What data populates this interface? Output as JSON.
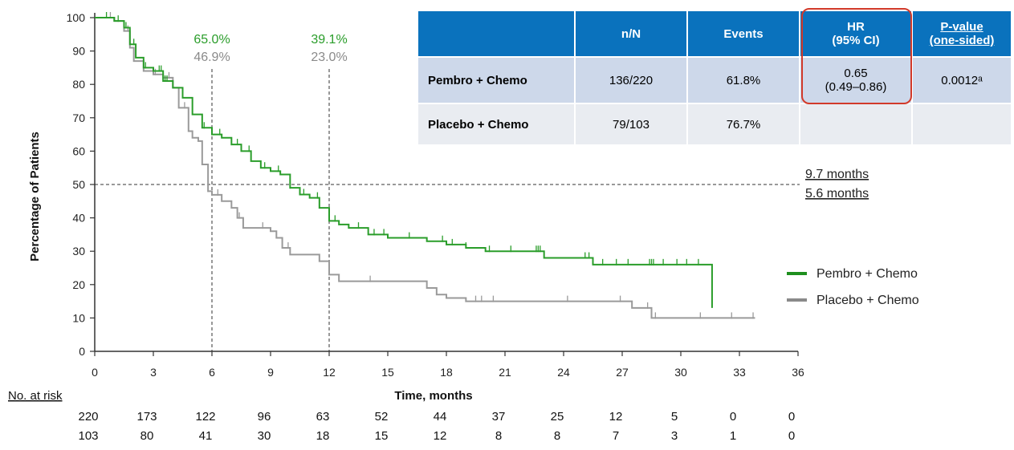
{
  "chart_data": {
    "type": "line",
    "title": "",
    "xlabel": "Time, months",
    "ylabel": "Percentage of Patients",
    "xlim": [
      0,
      36
    ],
    "ylim": [
      0,
      100
    ],
    "xticks": [
      0,
      3,
      6,
      9,
      12,
      15,
      18,
      21,
      24,
      27,
      30,
      33,
      36
    ],
    "yticks": [
      0,
      10,
      20,
      30,
      40,
      50,
      60,
      70,
      80,
      90,
      100
    ],
    "grid": false,
    "legend_position": "right",
    "series": [
      {
        "name": "Pembro + Chemo",
        "color": "#2a9d2a",
        "points": [
          [
            0,
            100
          ],
          [
            1,
            99
          ],
          [
            1.5,
            97
          ],
          [
            1.8,
            92
          ],
          [
            2.1,
            88
          ],
          [
            2.5,
            85
          ],
          [
            3,
            84
          ],
          [
            3.5,
            81
          ],
          [
            4,
            79
          ],
          [
            4.5,
            76
          ],
          [
            5,
            71
          ],
          [
            5.5,
            67
          ],
          [
            6,
            65
          ],
          [
            6.5,
            64
          ],
          [
            7,
            62
          ],
          [
            7.5,
            60
          ],
          [
            8,
            57
          ],
          [
            8.5,
            55
          ],
          [
            9,
            54
          ],
          [
            9.5,
            53
          ],
          [
            10,
            49
          ],
          [
            10.5,
            47
          ],
          [
            11,
            46
          ],
          [
            11.5,
            43
          ],
          [
            12,
            39.1
          ],
          [
            12.5,
            38
          ],
          [
            13,
            37
          ],
          [
            14,
            35
          ],
          [
            15,
            34
          ],
          [
            16,
            34
          ],
          [
            17,
            33
          ],
          [
            18,
            32
          ],
          [
            19,
            31
          ],
          [
            20,
            30
          ],
          [
            22,
            30
          ],
          [
            23,
            28
          ],
          [
            24,
            28
          ],
          [
            25,
            28
          ],
          [
            25.5,
            26
          ],
          [
            27,
            26
          ],
          [
            28,
            26
          ],
          [
            31.5,
            26
          ],
          [
            31.6,
            13
          ]
        ],
        "censor_x": [
          0.6,
          1.2,
          1.6,
          2.0,
          2.6,
          3.3,
          3.4,
          3.5,
          3.6,
          3.7,
          5.6,
          6.4,
          7.0,
          7.3,
          7.9,
          8.7,
          9.4,
          10.0,
          10.7,
          11.4,
          12.3,
          13.5,
          14.3,
          14.8,
          16.1,
          17.8,
          18.3,
          19.0,
          20.2,
          21.3,
          22.6,
          22.7,
          22.8,
          25.1,
          25.3,
          26.0,
          26.7,
          27.3,
          28.4,
          28.5,
          28.6,
          29.1,
          29.8,
          30.3,
          30.9
        ]
      },
      {
        "name": "Placebo + Chemo",
        "color": "#9a9a9a",
        "points": [
          [
            0,
            100
          ],
          [
            1,
            99
          ],
          [
            1.5,
            96
          ],
          [
            1.8,
            91
          ],
          [
            2,
            87
          ],
          [
            2.5,
            84
          ],
          [
            3,
            83
          ],
          [
            3.5,
            82
          ],
          [
            4,
            79
          ],
          [
            4.3,
            73
          ],
          [
            4.8,
            66
          ],
          [
            5,
            64
          ],
          [
            5.3,
            63
          ],
          [
            5.5,
            56
          ],
          [
            5.8,
            48
          ],
          [
            6,
            46.9
          ],
          [
            6.5,
            45
          ],
          [
            7,
            43
          ],
          [
            7.3,
            40
          ],
          [
            7.6,
            37
          ],
          [
            8,
            37
          ],
          [
            9,
            36
          ],
          [
            9.3,
            34
          ],
          [
            9.6,
            31
          ],
          [
            10,
            29
          ],
          [
            11,
            29
          ],
          [
            11.5,
            27
          ],
          [
            12,
            23.0
          ],
          [
            12.5,
            21
          ],
          [
            13,
            21
          ],
          [
            14,
            21
          ],
          [
            16,
            21
          ],
          [
            17,
            19
          ],
          [
            17.5,
            17
          ],
          [
            18,
            16
          ],
          [
            19,
            15
          ],
          [
            25,
            15
          ],
          [
            27,
            15
          ],
          [
            27.5,
            13
          ],
          [
            28.5,
            10
          ],
          [
            33.8,
            10
          ]
        ],
        "censor_x": [
          0.8,
          1.7,
          3.1,
          3.8,
          4.6,
          5.8,
          6.3,
          7.4,
          8.6,
          9.9,
          14.1,
          19.5,
          19.8,
          20.4,
          24.2,
          26.9,
          28.3,
          28.7,
          31.0,
          32.6,
          33.7
        ]
      }
    ],
    "annotations": {
      "pembro_6mo": "65.0%",
      "placebo_6mo": "46.9%",
      "pembro_12mo": "39.1%",
      "placebo_12mo": "23.0%",
      "median_pembro": "9.7 months",
      "median_placebo": "5.6 months"
    },
    "reference_lines": {
      "vertical_x": [
        6,
        12
      ],
      "horizontal_y": 50
    }
  },
  "risk_table": {
    "label": "No. at risk",
    "pembro": [
      "220",
      "173",
      "122",
      "96",
      "63",
      "52",
      "44",
      "37",
      "25",
      "12",
      "5",
      "0",
      "0"
    ],
    "placebo": [
      "103",
      "80",
      "41",
      "30",
      "18",
      "15",
      "12",
      "8",
      "8",
      "7",
      "3",
      "1",
      "0"
    ]
  },
  "legend": {
    "pembro": "Pembro + Chemo",
    "placebo": "Placebo + Chemo"
  },
  "hr_table": {
    "headers": {
      "nN": "n/N",
      "events": "Events",
      "hr_line1": "HR",
      "hr_line2": "(95% CI)",
      "p_line1": "P-value",
      "p_line2": "(one-sided)"
    },
    "rows": [
      {
        "arm": "Pembro + Chemo",
        "nN": "136/220",
        "events": "61.8%",
        "hr_line1": "0.65",
        "hr_line2": "(0.49–0.86)",
        "p": "0.0012ᵃ"
      },
      {
        "arm": "Placebo + Chemo",
        "nN": "79/103",
        "events": "76.7%",
        "hr_line1": "",
        "hr_line2": "",
        "p": ""
      }
    ],
    "highlight_color": "#d23a2a"
  }
}
